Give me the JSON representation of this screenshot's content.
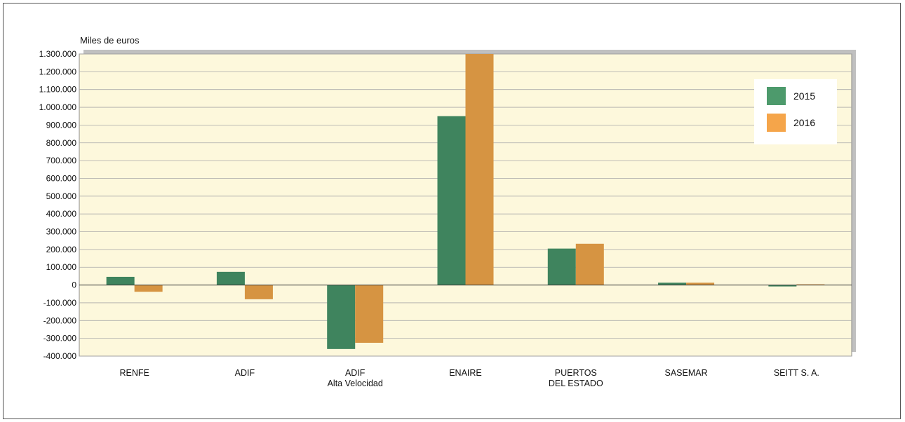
{
  "chart_data": {
    "type": "bar",
    "ylabel": "Miles de euros",
    "categories": [
      [
        "RENFE"
      ],
      [
        "ADIF"
      ],
      [
        "ADIF",
        "Alta Velocidad"
      ],
      [
        "ENAIRE"
      ],
      [
        "PUERTOS",
        "DEL ESTADO"
      ],
      [
        "SASEMAR"
      ],
      [
        "SEITT S. A."
      ]
    ],
    "series": [
      {
        "name": "2015",
        "color": "#3f845e",
        "legend_color": "#4d9a6c",
        "values": [
          46000,
          74000,
          -360000,
          950000,
          205000,
          13000,
          -8000
        ]
      },
      {
        "name": "2016",
        "color": "#d69442",
        "legend_color": "#f5a54a",
        "values": [
          -38000,
          -80000,
          -325000,
          1300000,
          232000,
          13000,
          4000
        ]
      }
    ],
    "ylim": [
      -400000,
      1300000
    ],
    "yticks": [
      1300000,
      1200000,
      1100000,
      1000000,
      900000,
      800000,
      700000,
      600000,
      500000,
      400000,
      300000,
      200000,
      100000,
      0,
      -100000,
      -200000,
      -300000,
      -400000
    ],
    "ytick_labels": [
      "1.300.000",
      "1.200.000",
      "1.100.000",
      "1.000.000",
      "900.000",
      "800.000",
      "700.000",
      "600.000",
      "500.000",
      "400.000",
      "300.000",
      "200.000",
      "100.000",
      "0",
      "-100.000",
      "-200.000",
      "-300.000",
      "-400.000"
    ],
    "grid": true,
    "legend_position": "top-right",
    "plot_background": "#fdf8dc",
    "shadow_color": "#c0c0c0"
  }
}
